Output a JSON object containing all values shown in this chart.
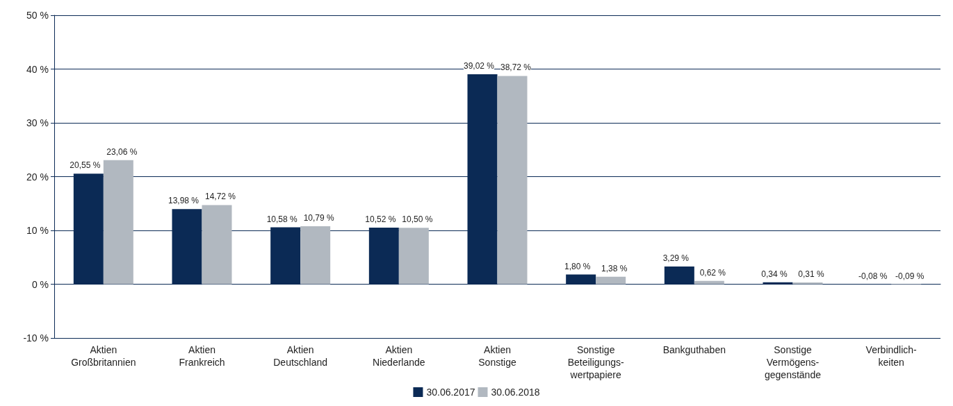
{
  "chart_data": {
    "type": "bar",
    "categories": [
      "Aktien\nGroßbritannien",
      "Aktien\nFrankreich",
      "Aktien\nDeutschland",
      "Aktien\nNiederlande",
      "Aktien\nSonstige",
      "Sonstige\nBeteiligungs-\nwertpapiere",
      "Bankguthaben",
      "Sonstige\nVermögens-\ngegenstände",
      "Verbindlich-\nkeiten"
    ],
    "series": [
      {
        "name": "30.06.2017",
        "color": "#0b2a55",
        "values": [
          20.55,
          13.98,
          10.58,
          10.52,
          39.02,
          1.8,
          3.29,
          0.34,
          -0.08
        ],
        "value_labels": [
          "20,55 %",
          "13,98 %",
          "10,58 %",
          "10,52 %",
          "39,02 %",
          "1,80 %",
          "3,29 %",
          "0,34 %",
          "-0,08 %"
        ]
      },
      {
        "name": "30.06.2018",
        "color": "#b1b8c0",
        "values": [
          23.06,
          14.72,
          10.79,
          10.5,
          38.72,
          1.38,
          0.62,
          0.31,
          -0.09
        ],
        "value_labels": [
          "23,06 %",
          "14,72 %",
          "10,79 %",
          "10,50 %",
          "38,72 %",
          "1,38 %",
          "0,62 %",
          "0,31 %",
          "-0,09 %"
        ]
      }
    ],
    "ylim": [
      -10,
      50
    ],
    "yticks": [
      {
        "value": -10,
        "label": "-10 %"
      },
      {
        "value": 0,
        "label": "0 %"
      },
      {
        "value": 10,
        "label": "10 %"
      },
      {
        "value": 20,
        "label": "20 %"
      },
      {
        "value": 30,
        "label": "30 %"
      },
      {
        "value": 40,
        "label": "40 %"
      },
      {
        "value": 50,
        "label": "50 %"
      }
    ],
    "grid": "y",
    "legend": "bottom"
  }
}
